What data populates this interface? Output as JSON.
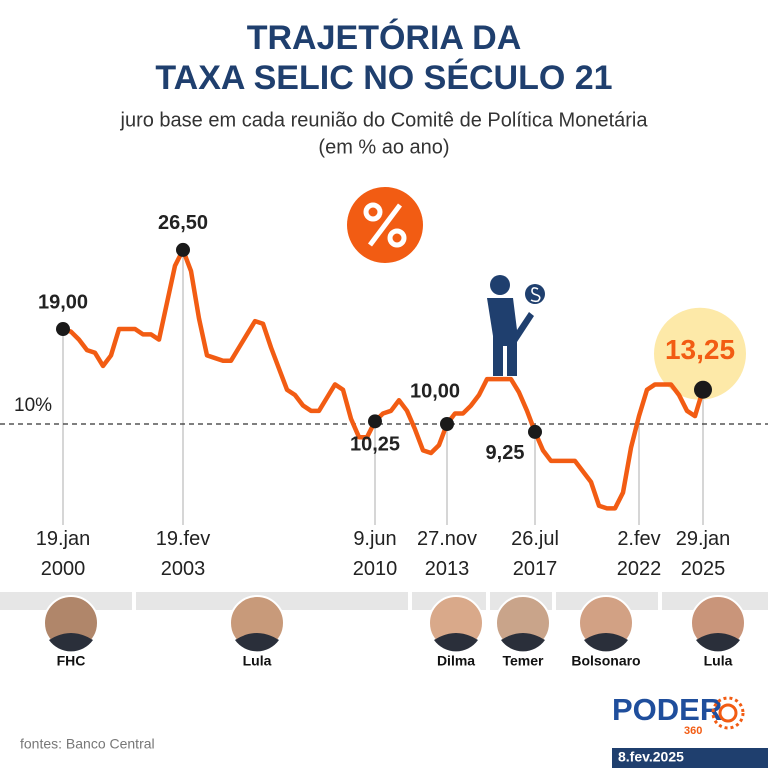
{
  "title": [
    "TRAJETÓRIA DA",
    "TAXA SELIC NO SÉCULO 21"
  ],
  "subtitle": [
    "juro base em cada reunião do Comitê de Política Monetária",
    "(em % ao ano)"
  ],
  "chart_data": {
    "type": "line",
    "color": "#f25c13",
    "ylim": [
      0,
      30
    ],
    "reference_line": {
      "value": 10,
      "label": "10%"
    },
    "values": [
      19.0,
      18.75,
      18.0,
      17.0,
      16.75,
      15.5,
      16.5,
      19.0,
      19.0,
      19.0,
      18.5,
      18.5,
      18.0,
      21.5,
      25.0,
      26.5,
      24.5,
      20.0,
      16.5,
      16.25,
      16.0,
      16.0,
      17.25,
      18.5,
      19.75,
      19.5,
      17.25,
      15.25,
      13.25,
      12.75,
      11.75,
      11.25,
      11.25,
      12.5,
      13.75,
      13.25,
      10.5,
      8.75,
      8.75,
      10.25,
      11.0,
      11.25,
      12.25,
      11.25,
      9.5,
      7.5,
      7.25,
      8.0,
      10.0,
      11.0,
      11.0,
      11.75,
      12.75,
      14.25,
      14.25,
      14.25,
      14.25,
      13.0,
      11.25,
      9.25,
      7.5,
      6.5,
      6.5,
      6.5,
      6.5,
      5.5,
      4.5,
      2.25,
      2.0,
      2.0,
      3.5,
      7.75,
      10.75,
      13.25,
      13.75,
      13.75,
      13.75,
      12.75,
      11.25,
      10.75,
      13.25
    ],
    "value_labels": [
      "19,00",
      null,
      null,
      null,
      null,
      null,
      null,
      null,
      null,
      null,
      null,
      null,
      null,
      null,
      null,
      "26,50",
      null,
      null,
      null,
      null,
      null,
      null,
      null,
      null,
      null,
      null,
      null,
      null,
      null,
      null,
      null,
      null,
      null,
      null,
      null,
      null,
      null,
      null,
      null,
      "10,25",
      null,
      null,
      null,
      null,
      null,
      null,
      null,
      null,
      "10,00",
      null,
      null,
      null,
      null,
      null,
      null,
      null,
      null,
      null,
      null,
      "9,25",
      null,
      null,
      null,
      null,
      null,
      null,
      null,
      null,
      null,
      null,
      null,
      null,
      null,
      null,
      null,
      null,
      null,
      null,
      null,
      null,
      "13,25"
    ],
    "categories": [
      "19.jan\n2000",
      null,
      null,
      null,
      null,
      null,
      null,
      null,
      null,
      null,
      null,
      null,
      null,
      null,
      null,
      "19.fev\n2003",
      null,
      null,
      null,
      null,
      null,
      null,
      null,
      null,
      null,
      null,
      null,
      null,
      null,
      null,
      null,
      null,
      null,
      null,
      null,
      null,
      null,
      null,
      null,
      "9.jun\n2010",
      null,
      null,
      null,
      null,
      null,
      null,
      null,
      null,
      "27.nov\n2013",
      null,
      null,
      null,
      null,
      null,
      null,
      null,
      null,
      null,
      null,
      "26.jul\n2017",
      null,
      null,
      null,
      null,
      null,
      null,
      null,
      null,
      null,
      null,
      null,
      null,
      "2.fev\n2022",
      null,
      null,
      null,
      null,
      null,
      null,
      null,
      "29.jan\n2025"
    ]
  },
  "presidents": [
    "FHC",
    "Lula",
    "Dilma",
    "Temer",
    "Bolsonaro",
    "Lula"
  ],
  "source": "fontes: Banco Central",
  "brand": {
    "name": "PODER",
    "number": "360"
  },
  "date": "8.fev.2025"
}
